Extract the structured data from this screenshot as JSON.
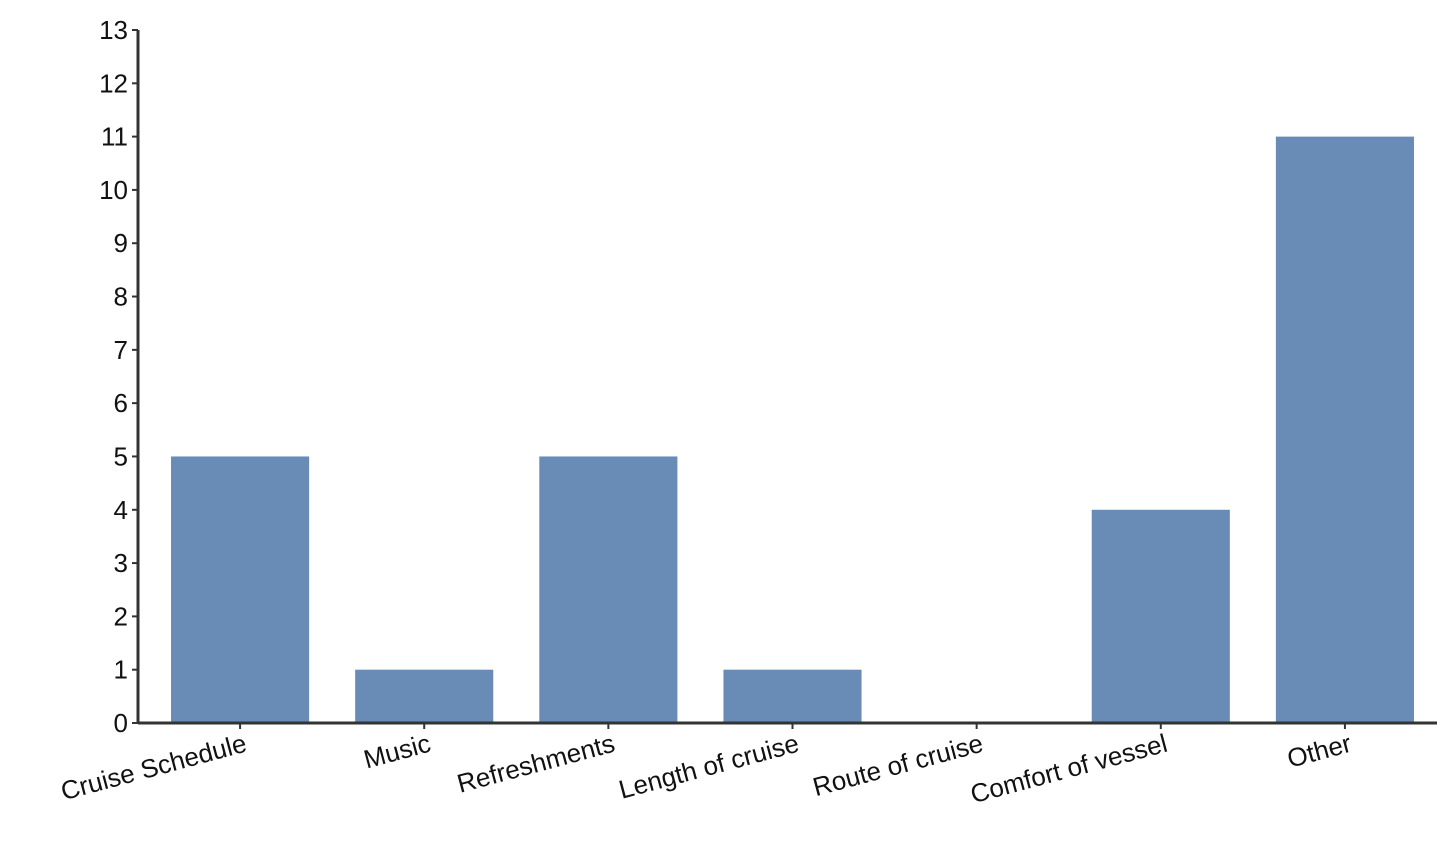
{
  "chart_data": {
    "type": "bar",
    "categories": [
      "Cruise Schedule",
      "Music",
      "Refreshments",
      "Length of cruise",
      "Route of cruise",
      "Comfort of vessel",
      "Other"
    ],
    "values": [
      5,
      1,
      5,
      1,
      0,
      4,
      11
    ],
    "title": "",
    "xlabel": "",
    "ylabel": "",
    "ylim": [
      0,
      13
    ],
    "yticks": [
      0,
      1,
      2,
      3,
      4,
      5,
      6,
      7,
      8,
      9,
      10,
      11,
      12,
      13
    ],
    "grid": false,
    "bar_color": "#688CB6",
    "axis_color": "#333333"
  }
}
